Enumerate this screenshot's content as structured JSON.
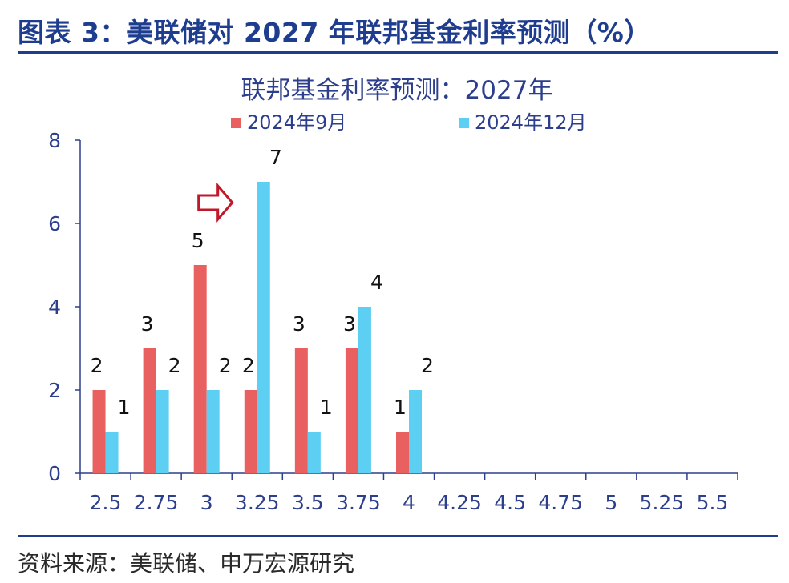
{
  "figure": {
    "title": "图表 3：美联储对 2027 年联邦基金利率预测（%）",
    "source": "资料来源：美联储、申万宏源研究"
  },
  "colors": {
    "series_sep": "#e8605f",
    "series_dec": "#5dcff2",
    "header": "#1f3d8f",
    "axis": "#2d3f8c",
    "arrow": "#c0182a"
  },
  "chart_data": {
    "type": "bar",
    "title": "联邦基金利率预测：2027年",
    "categories": [
      "2.5",
      "2.75",
      "3",
      "3.25",
      "3.5",
      "3.75",
      "4",
      "4.25",
      "4.5",
      "4.75",
      "5",
      "5.25",
      "5.5"
    ],
    "series": [
      {
        "name": "2024年9月",
        "values": [
          2,
          3,
          5,
          2,
          3,
          3,
          1,
          0,
          0,
          0,
          0,
          0,
          0
        ]
      },
      {
        "name": "2024年12月",
        "values": [
          1,
          2,
          2,
          7,
          1,
          4,
          2,
          0,
          0,
          0,
          0,
          0,
          0
        ]
      }
    ],
    "y_ticks": [
      0,
      2,
      4,
      6,
      8
    ],
    "ylim": [
      0,
      8
    ],
    "xlabel": "",
    "ylabel": "",
    "grid": false,
    "legend": "top",
    "annotation": {
      "type": "right-arrow",
      "category": "3"
    }
  }
}
